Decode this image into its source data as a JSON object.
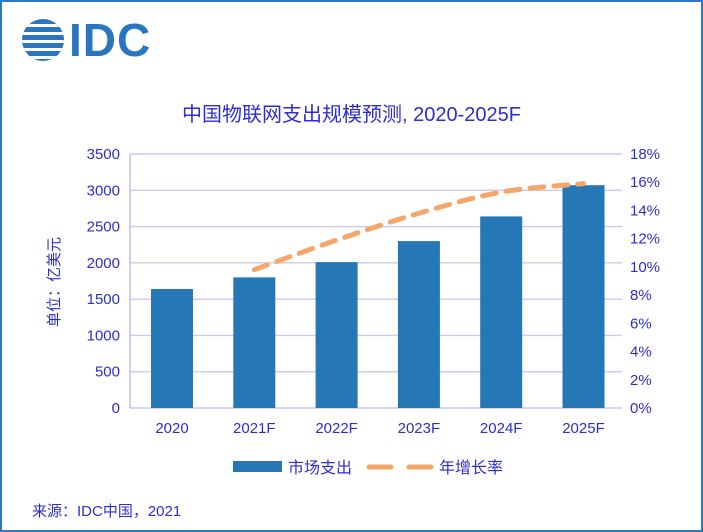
{
  "header": {
    "logo_text": "IDC"
  },
  "chart_data": {
    "type": "bar",
    "title": "中国物联网支出规模预测, 2020-2025F",
    "categories": [
      "2020",
      "2021F",
      "2022F",
      "2023F",
      "2024F",
      "2025F"
    ],
    "series": [
      {
        "name": "市场支出",
        "type": "bar",
        "axis": "left",
        "color": "#2577B6",
        "values": [
          1640,
          1800,
          2010,
          2300,
          2640,
          3070
        ]
      },
      {
        "name": "年增长率",
        "type": "line",
        "style": "dashed",
        "axis": "right",
        "color": "#F5A76B",
        "values": [
          null,
          9.8,
          11.9,
          13.8,
          15.3,
          15.9
        ]
      }
    ],
    "left_axis": {
      "title": "单位：亿美元",
      "min": 0,
      "max": 3500,
      "step": 500,
      "tick_labels": [
        "0",
        "500",
        "1000",
        "1500",
        "2000",
        "2500",
        "3000",
        "3500"
      ]
    },
    "right_axis": {
      "min": 0,
      "max": 18,
      "step": 2,
      "tick_labels": [
        "0%",
        "2%",
        "4%",
        "6%",
        "8%",
        "10%",
        "12%",
        "14%",
        "16%",
        "18%"
      ]
    },
    "grid": true,
    "legend_position": "bottom"
  },
  "footer": {
    "source": "来源：IDC中国，2021"
  },
  "colors": {
    "frame_border": "#2E7ABF",
    "logo_blue": "#2875C0",
    "text_blue": "#2D2DD2",
    "gridline": "#CCC8F2",
    "axis_line": "#BDB9EE",
    "bar": "#2577B6",
    "line": "#F5A76B"
  }
}
